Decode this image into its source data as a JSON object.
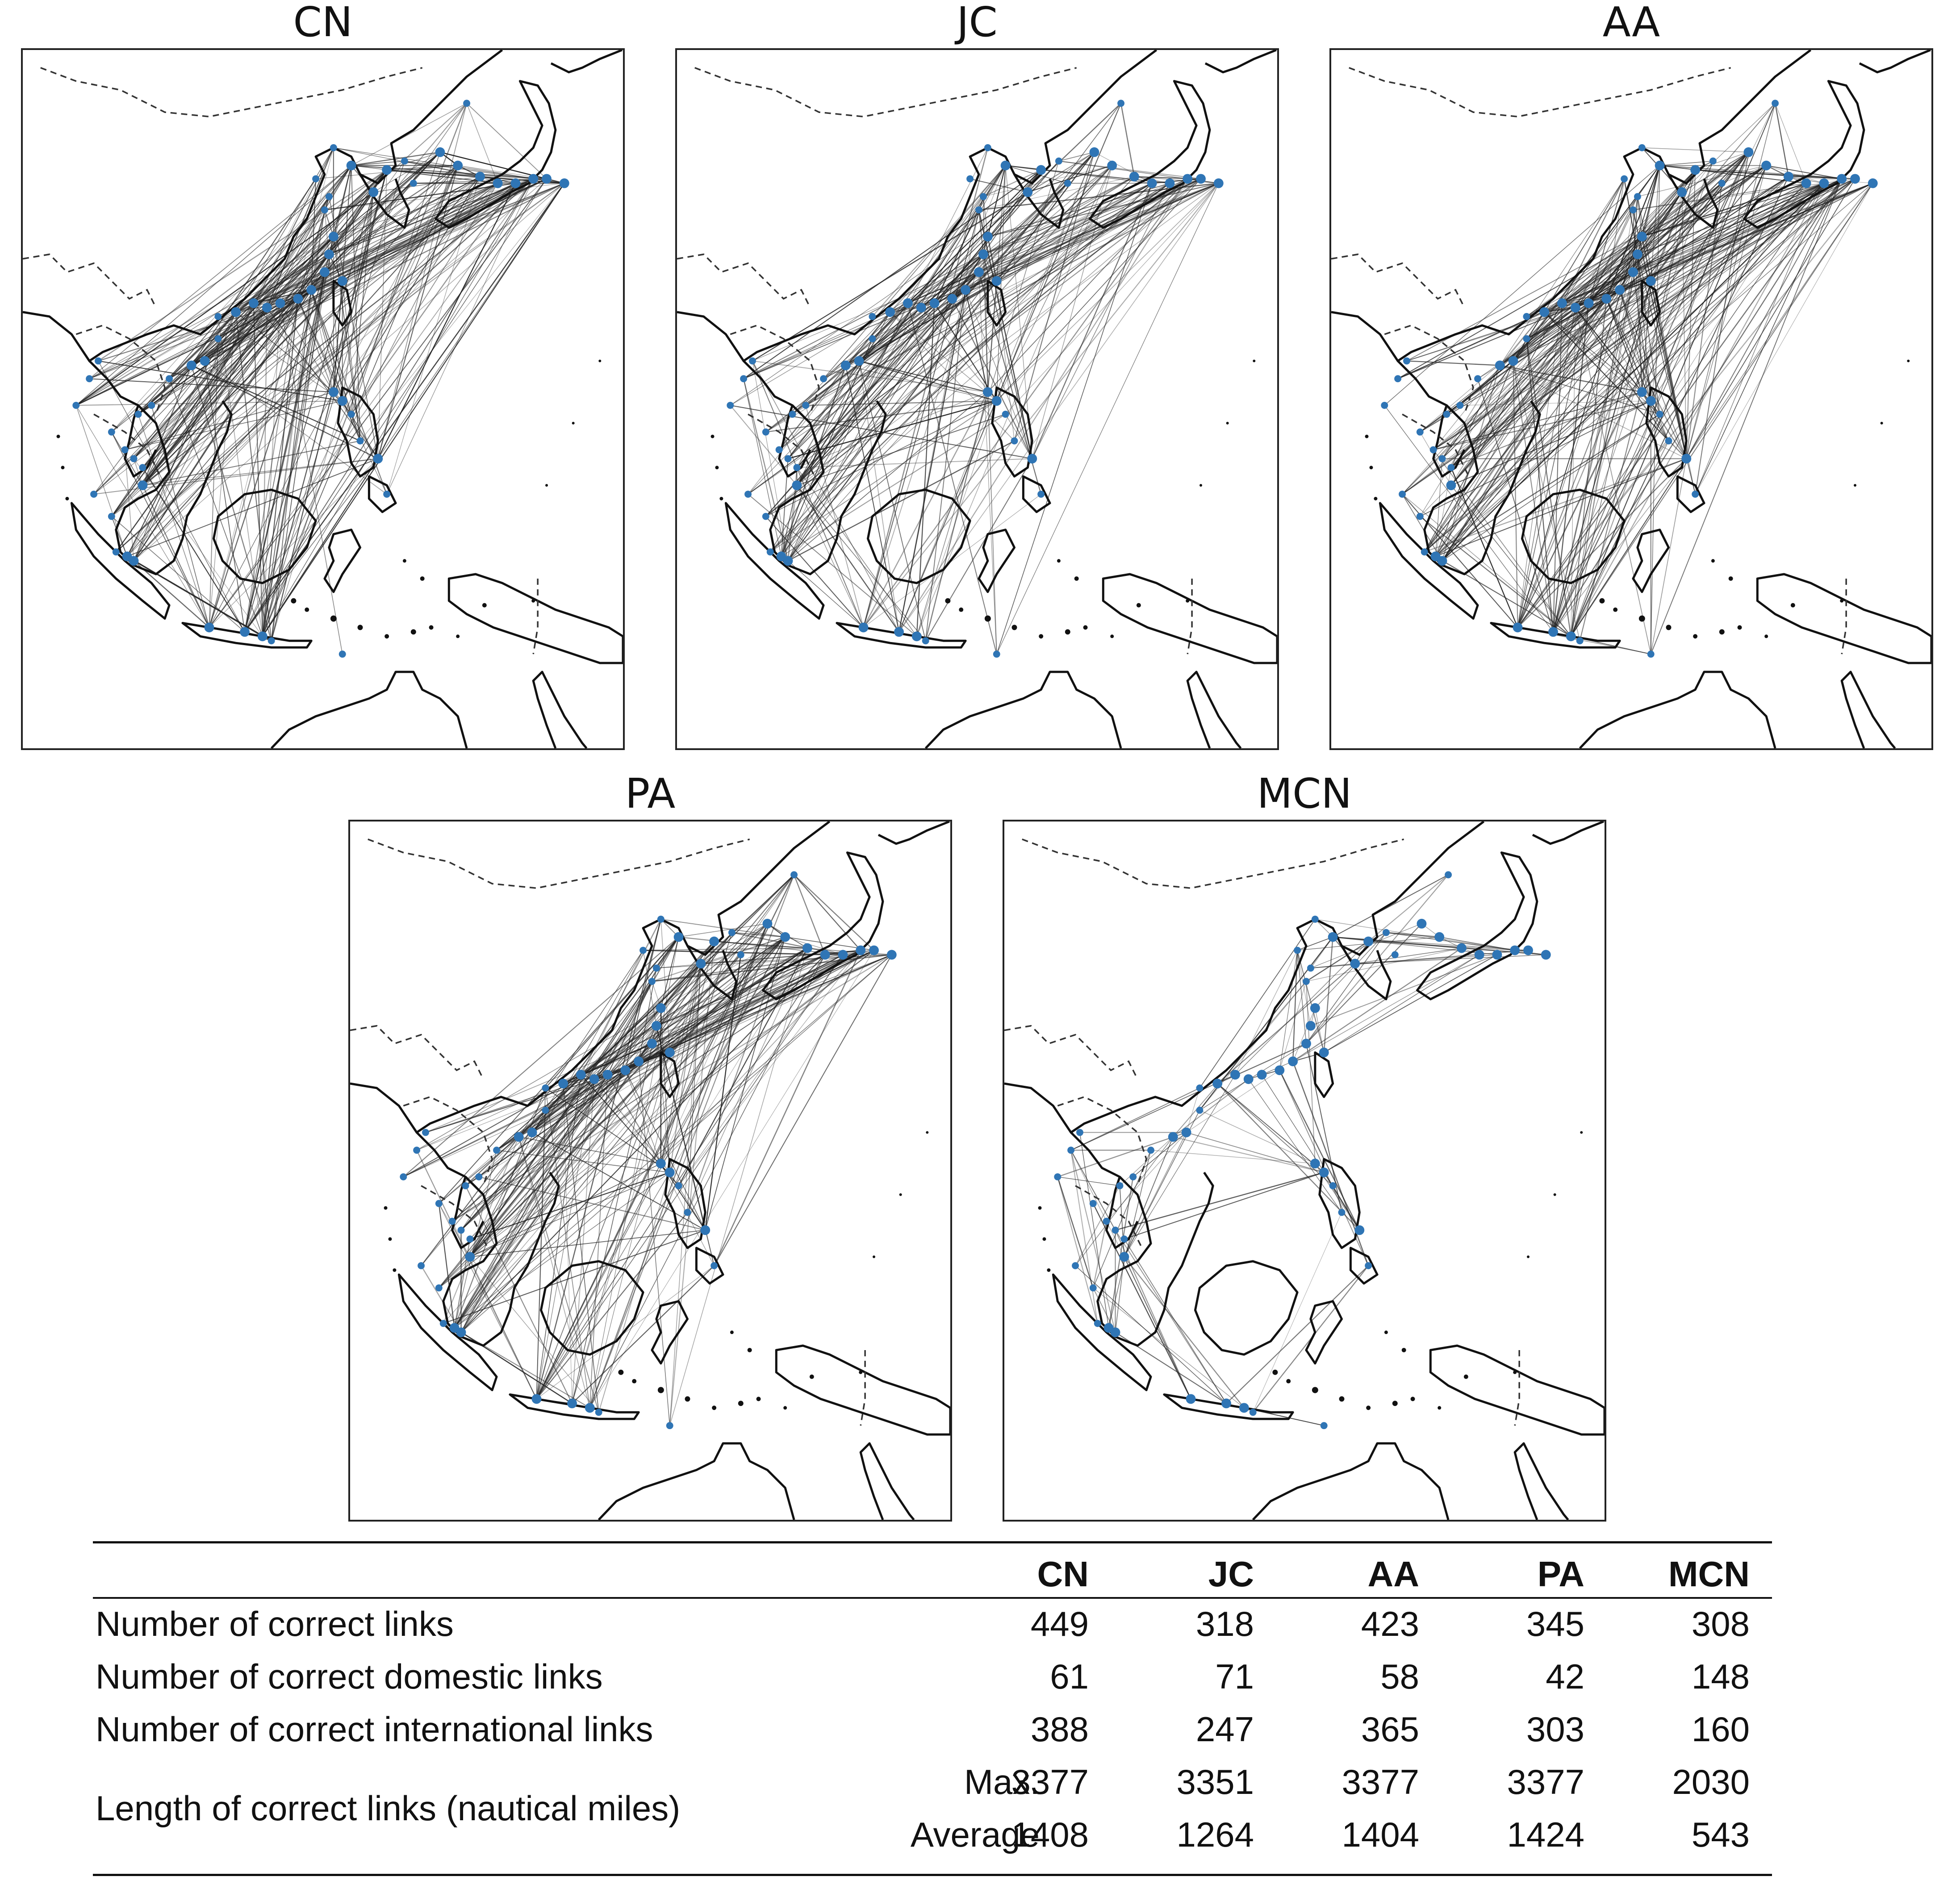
{
  "panels": [
    {
      "id": "CN",
      "title": "CN",
      "density": 1.0
    },
    {
      "id": "JC",
      "title": "JC",
      "density": 0.72
    },
    {
      "id": "AA",
      "title": "AA",
      "density": 0.95
    },
    {
      "id": "PA",
      "title": "PA",
      "density": 0.78
    },
    {
      "id": "MCN",
      "title": "MCN",
      "density": 0.35
    }
  ],
  "colors": {
    "port": "#2f75b5",
    "link": "#222222",
    "coast": "#111111"
  },
  "table": {
    "columns": [
      "CN",
      "JC",
      "AA",
      "PA",
      "MCN"
    ],
    "rows": [
      {
        "label": "Number of correct links",
        "sublabel": "",
        "values": [
          "449",
          "318",
          "423",
          "345",
          "308"
        ]
      },
      {
        "label": "Number of correct domestic links",
        "sublabel": "",
        "values": [
          "61",
          "71",
          "58",
          "42",
          "148"
        ]
      },
      {
        "label": "Number of correct international links",
        "sublabel": "",
        "values": [
          "388",
          "247",
          "365",
          "303",
          "160"
        ]
      },
      {
        "label": "Length of correct links (nautical miles)",
        "sublabel": "Max.",
        "values": [
          "3377",
          "3351",
          "3377",
          "3377",
          "2030"
        ]
      },
      {
        "label": "",
        "sublabel": "Average",
        "values": [
          "1408",
          "1264",
          "1404",
          "1424",
          "543"
        ]
      }
    ]
  }
}
